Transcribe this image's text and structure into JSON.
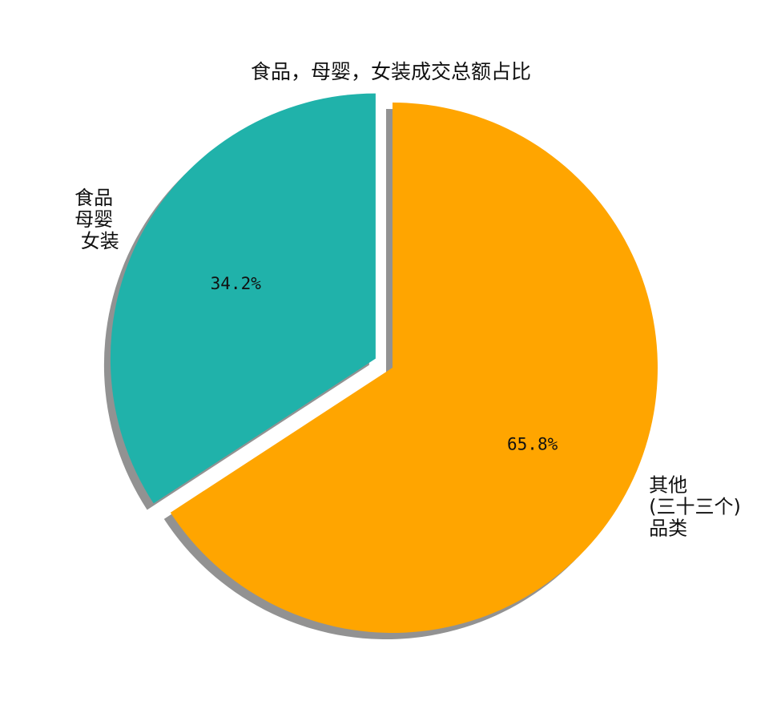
{
  "chart_data": {
    "type": "pie",
    "title": "食品，母婴，女装成交总额占比",
    "slices": [
      {
        "label_lines": [
          "食品",
          "母婴",
          "女装"
        ],
        "value": 34.2,
        "pct_label": "34.2%",
        "color": "#20B2AA",
        "exploded": true
      },
      {
        "label_lines": [
          "其他",
          "(三十三个)",
          "品类"
        ],
        "value": 65.8,
        "pct_label": "65.8%",
        "color": "#FFA500",
        "exploded": false
      }
    ],
    "start_angle": "12 o'clock",
    "direction": "counterclockwise",
    "shadow": true,
    "shadow_color": "#8c8c8c"
  }
}
